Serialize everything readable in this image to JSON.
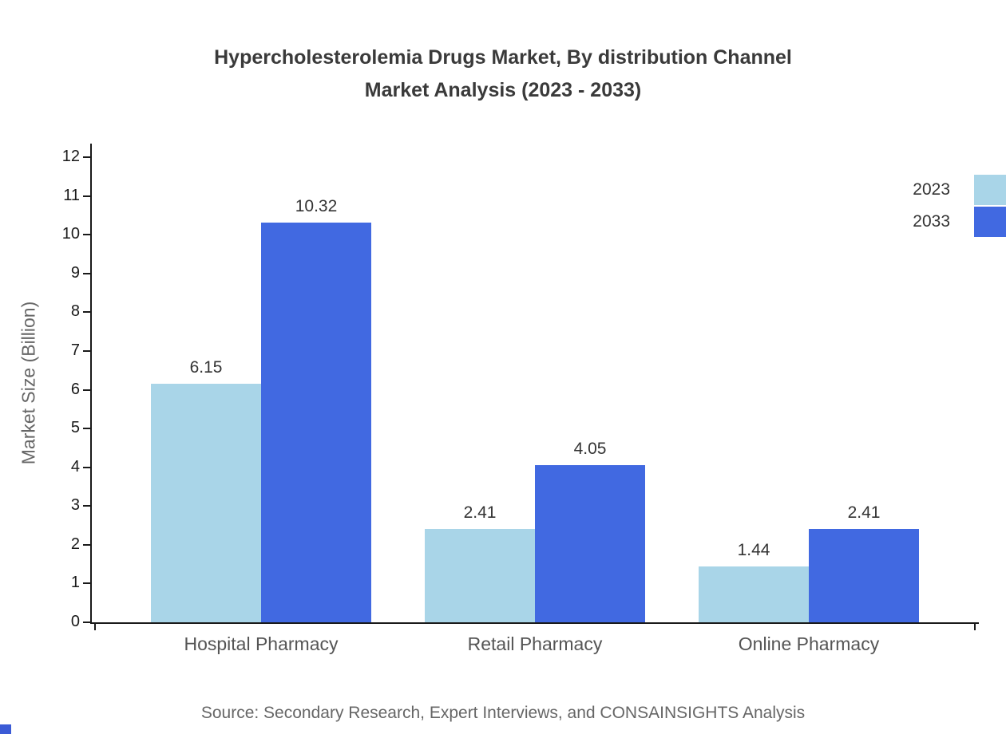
{
  "title": {
    "line1": "Hypercholesterolemia Drugs Market, By distribution Channel",
    "line2": "Market Analysis (2023 - 2033)"
  },
  "chart_data": {
    "type": "bar",
    "title": "Hypercholesterolemia Drugs Market, By distribution Channel Market Analysis (2023 - 2033)",
    "categories": [
      "Hospital Pharmacy",
      "Retail Pharmacy",
      "Online Pharmacy"
    ],
    "series": [
      {
        "name": "2023",
        "color": "#a9d5e8",
        "values": [
          6.15,
          2.41,
          1.44
        ]
      },
      {
        "name": "2033",
        "color": "#4169e1",
        "values": [
          10.32,
          4.05,
          2.41
        ]
      }
    ],
    "xlabel": "",
    "ylabel": "Market Size (Billion)",
    "ylim": [
      0,
      12
    ],
    "yticks": [
      0,
      1,
      2,
      3,
      4,
      5,
      6,
      7,
      8,
      9,
      10,
      11,
      12
    ],
    "grid": false,
    "legend_position": "top-right",
    "value_labels_shown": true
  },
  "source": "Source: Secondary Research, Expert Interviews, and CONSAINSIGHTS Analysis"
}
